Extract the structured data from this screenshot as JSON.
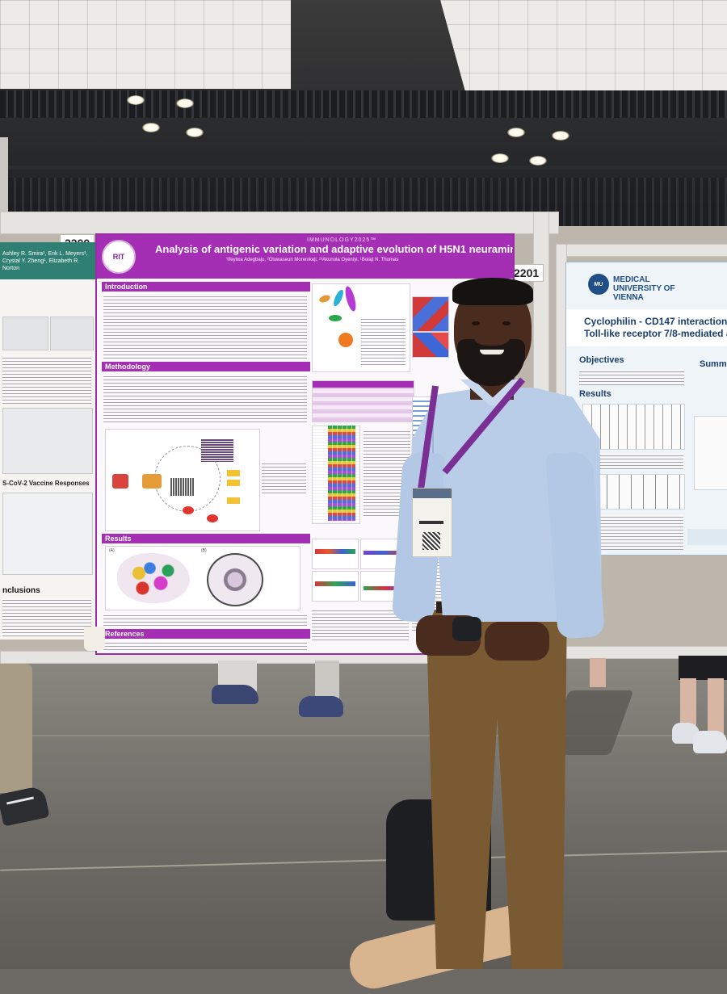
{
  "scene": {
    "boards": {
      "left_number": "2200",
      "center_number": "2201"
    },
    "left_poster": {
      "authors": "Ashley R. Smira¹, Erik L. Meyers¹, Crystal Y. Zheng¹, Elizabeth R. Norton",
      "section_vaccine": "S-CoV-2 Vaccine Responses",
      "section_conclusions": "nclusions"
    },
    "center_poster": {
      "logo_text": "RIT",
      "tag": "IMMUNOLOGY2025™",
      "title": "Analysis of antigenic variation and adaptive evolution of H5N1 neuraminidase gene",
      "authors": "¹Ifeyiwa Adegbaju, ²Oluwaseun Morenikeji, ¹³Akunola Oyeniyi, ¹Bolaji N. Thomas",
      "sections": {
        "introduction": "Introduction",
        "methodology": "Methodology",
        "results": "Results",
        "references": "References"
      },
      "panel_labels": [
        "(A)",
        "(B)"
      ]
    },
    "right_poster": {
      "university": "MEDICAL UNIVERSITY OF VIENNA",
      "title_line1": "Cyclophilin - CD147 interaction facilita",
      "title_line2": "Toll-like receptor 7/8-mediated activa",
      "objectives": "Objectives",
      "results": "Results",
      "summary": "Summ"
    },
    "colors": {
      "poster_accent": "#a52fb4",
      "left_poster_header": "#2f7f72",
      "right_poster_accent": "#1f4f86",
      "shirt": "#b9cde8",
      "lanyard": "#7b2f95",
      "trousers": "#7a5a33"
    }
  }
}
